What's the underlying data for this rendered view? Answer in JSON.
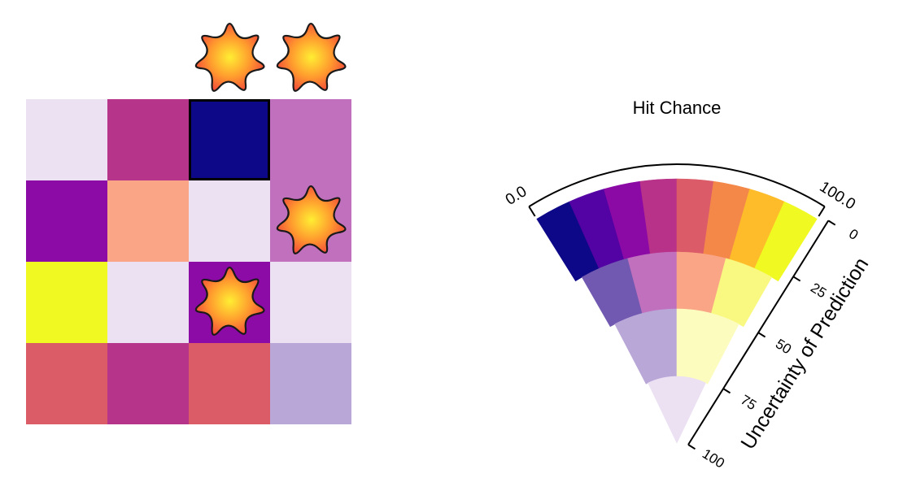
{
  "board": {
    "rows": 4,
    "cols": 4,
    "cells": [
      [
        {
          "color": "#ece0f3"
        },
        {
          "color": "#b6358a"
        },
        {
          "color": "#0d0887",
          "selected": true
        },
        {
          "color": "#c070bd"
        }
      ],
      [
        {
          "color": "#8c0aa5"
        },
        {
          "color": "#f9a586"
        },
        {
          "color": "#ece0f3"
        },
        {
          "color": "#c070bd",
          "icon": "explosion-icon"
        }
      ],
      [
        {
          "color": "#f0f921"
        },
        {
          "color": "#ece0f3"
        },
        {
          "color": "#8c0aa5",
          "icon": "explosion-icon"
        },
        {
          "color": "#ece0f3"
        }
      ],
      [
        {
          "color": "#db5c67"
        },
        {
          "color": "#b6358a"
        },
        {
          "color": "#db5c67"
        },
        {
          "color": "#b9a7d8"
        }
      ]
    ],
    "top_markers": [
      {
        "col": 3,
        "icon": "explosion-icon"
      },
      {
        "col": 4,
        "icon": "explosion-icon"
      }
    ]
  },
  "legend": {
    "title": "Hit Chance",
    "arc_min_label": "0.0",
    "arc_max_label": "100.0",
    "radial_axis_label": "Uncertainty of Prediction",
    "radial_ticks": [
      "0",
      "25",
      "50",
      "75",
      "100"
    ],
    "bands": [
      {
        "name": "0-25",
        "colors": [
          "#0d0887",
          "#5302a3",
          "#8b0aa5",
          "#b93289",
          "#db5c68",
          "#f48849",
          "#febc2a",
          "#f0f921"
        ]
      },
      {
        "name": "25-50",
        "colors": [
          "#7158b0",
          "#c070bd",
          "#f9a586",
          "#f9f881"
        ]
      },
      {
        "name": "50-75",
        "colors": [
          "#b9a7d8",
          "#fcfcbf"
        ]
      },
      {
        "name": "75-100",
        "colors": [
          "#ece0f3"
        ]
      }
    ]
  }
}
